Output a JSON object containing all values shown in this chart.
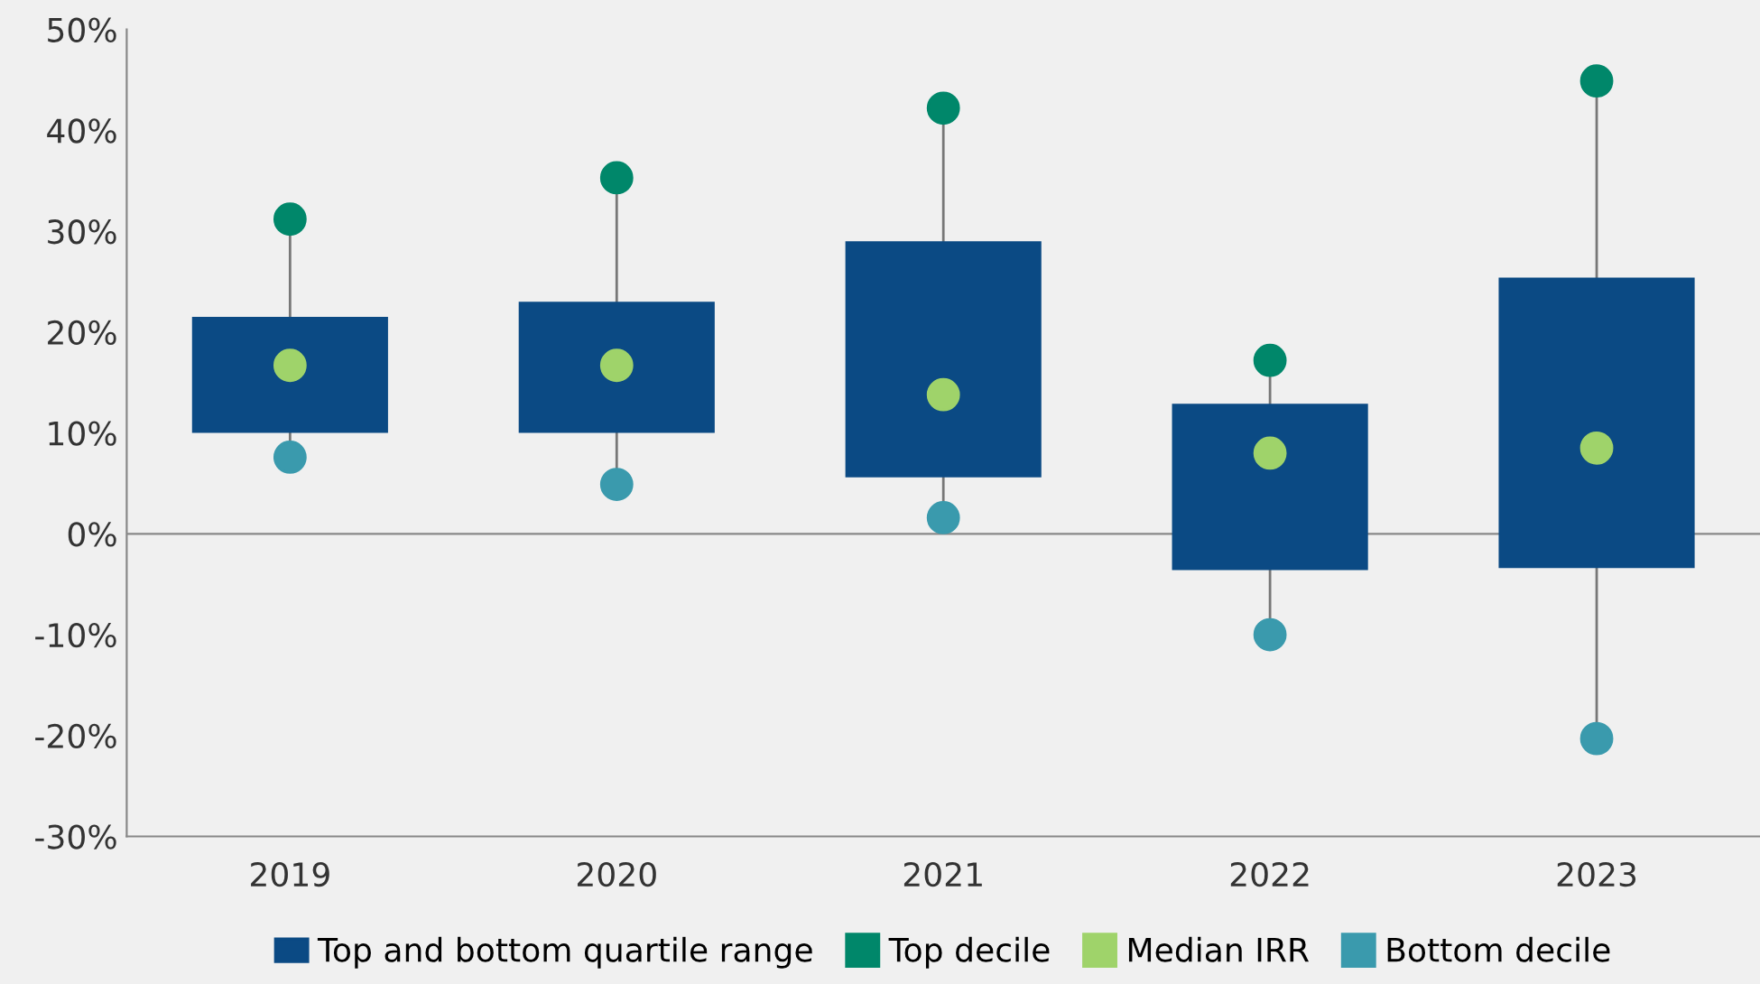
{
  "chart_data": {
    "type": "bar",
    "categories": [
      "2019",
      "2020",
      "2021",
      "2022",
      "2023"
    ],
    "series": [
      {
        "name": "Top and bottom quartile range",
        "color": "#0b4a84",
        "base": [
          10,
          10,
          5.6,
          -3.6,
          -3.4
        ],
        "values": [
          11.5,
          13,
          23.4,
          16.5,
          28.8
        ]
      },
      {
        "name": "Top decile",
        "type": "scatter",
        "color": "#00876a",
        "values": [
          31.2,
          35.3,
          42.2,
          17.2,
          44.9
        ]
      },
      {
        "name": "Median IRR",
        "type": "scatter",
        "color": "#9fd36a",
        "values": [
          16.7,
          16.7,
          13.8,
          8,
          8.5
        ]
      },
      {
        "name": "Bottom decile",
        "type": "scatter",
        "color": "#3a9aad",
        "values": [
          7.6,
          4.9,
          1.6,
          -10,
          -20.3
        ]
      }
    ],
    "ylim": [
      -30,
      50
    ],
    "yticks": [
      {
        "value": -30,
        "label": "-30%"
      },
      {
        "value": -20,
        "label": "-20%"
      },
      {
        "value": -10,
        "label": "-10%"
      },
      {
        "value": 0,
        "label": "0%"
      },
      {
        "value": 10,
        "label": "10%"
      },
      {
        "value": 20,
        "label": "20%"
      },
      {
        "value": 30,
        "label": "30%"
      },
      {
        "value": 40,
        "label": "40%"
      },
      {
        "value": 50,
        "label": "50%"
      }
    ],
    "ref_lines": [
      {
        "axis": "y",
        "value": 0,
        "label": null,
        "color": "#888888"
      }
    ],
    "marker": "circle",
    "grid": false,
    "legend": "bottom"
  }
}
